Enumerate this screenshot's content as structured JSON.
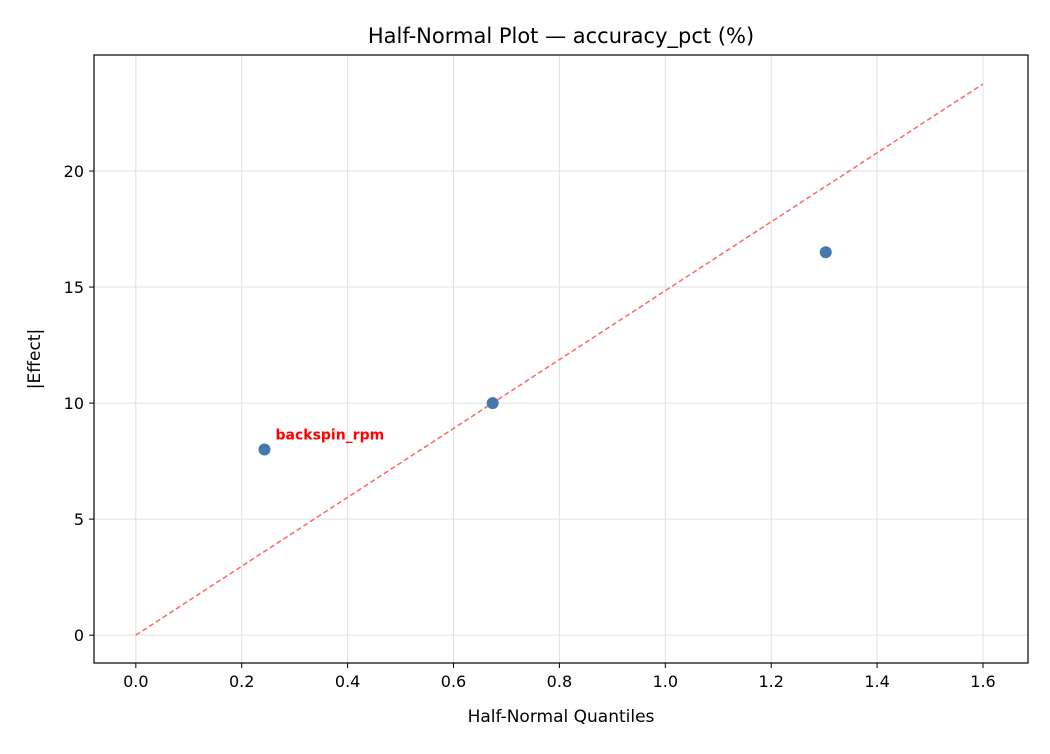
{
  "chart_data": {
    "type": "scatter",
    "title": "Half-Normal Plot — accuracy_pct (%)",
    "xlabel": "Half-Normal Quantiles",
    "ylabel": "|Effect|",
    "xlim": [
      -0.079,
      1.685
    ],
    "ylim": [
      -1.2,
      25.0
    ],
    "xticks": [
      0.0,
      0.2,
      0.4,
      0.6,
      0.8,
      1.0,
      1.2,
      1.4,
      1.6
    ],
    "xtick_labels": [
      "0.0",
      "0.2",
      "0.4",
      "0.6",
      "0.8",
      "1.0",
      "1.2",
      "1.4",
      "1.6"
    ],
    "yticks": [
      0,
      5,
      10,
      15,
      20
    ],
    "ytick_labels": [
      "0",
      "5",
      "10",
      "15",
      "20"
    ],
    "grid": true,
    "points": [
      {
        "x": 0.243,
        "y": 8.0,
        "label": "backspin_rpm"
      },
      {
        "x": 0.674,
        "y": 10.0,
        "label": ""
      },
      {
        "x": 1.303,
        "y": 16.5,
        "label": ""
      }
    ],
    "reference_line": {
      "x": [
        0,
        1.6
      ],
      "y": [
        0,
        23.75
      ],
      "style": "dashed"
    },
    "colors": {
      "point": "#4479ab",
      "line": "#ff6666",
      "label": "#ff0000",
      "grid": "#e0e0e0"
    }
  }
}
